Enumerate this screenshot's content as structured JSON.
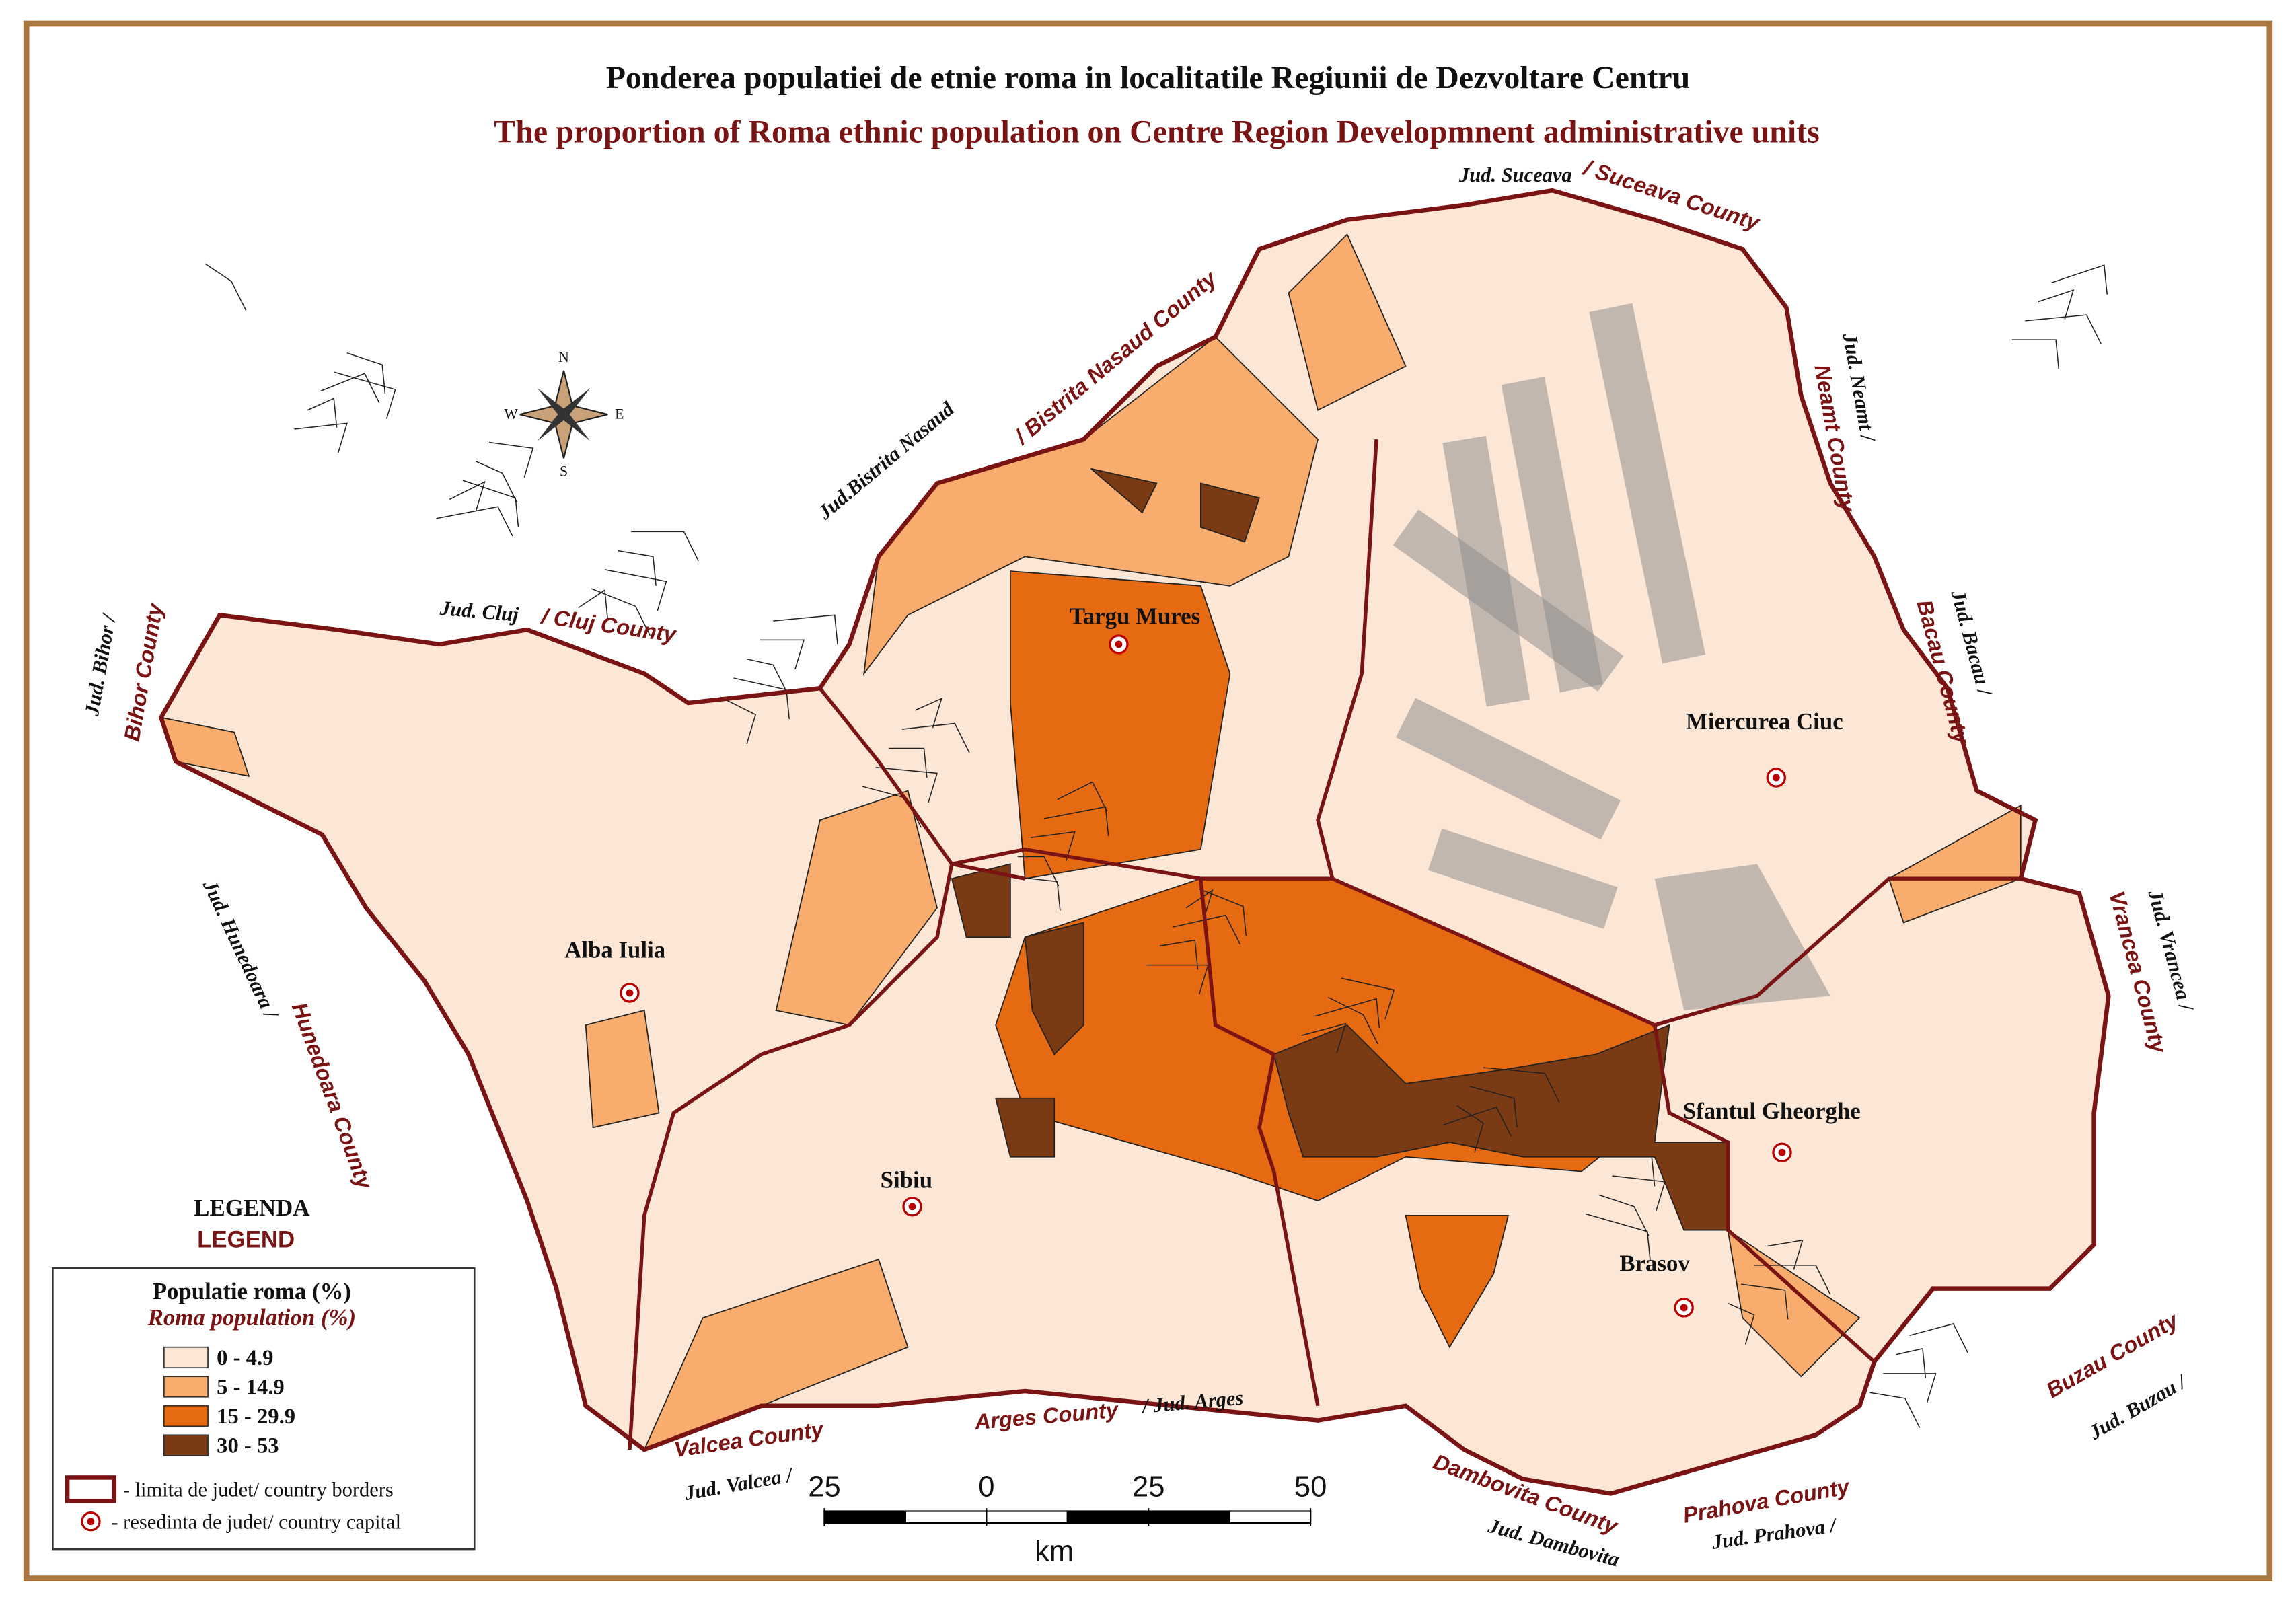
{
  "title": "Ponderea populatiei de etnie roma in localitatile Regiunii de Dezvoltare Centru",
  "subtitle": "The proportion of Roma ethnic population on Centre Region Developmnent administrative units",
  "compass": [
    "N",
    "E",
    "S",
    "W"
  ],
  "neighbors": [
    {
      "local": "Jud. Suceava",
      "english": "/ Suceava County"
    },
    {
      "local": "Jud. Neamt /",
      "english": "Neamt County"
    },
    {
      "local": "Jud. Bacau /",
      "english": "Bacau County"
    },
    {
      "local": "Jud. Vrancea /",
      "english": "Vrancea County"
    },
    {
      "local": "Jud. Buzau /",
      "english": "Buzau County"
    },
    {
      "local": "Jud. Prahova /",
      "english": "Prahova County"
    },
    {
      "local": "Jud. Dambovita",
      "english": "Dambovita County"
    },
    {
      "local": "/ Jud. Arges",
      "english": "Arges County"
    },
    {
      "local": "Jud. Valcea /",
      "english": "Valcea County"
    },
    {
      "local": "Jud. Hunedoara /",
      "english": "Hunedoara County"
    },
    {
      "local": "Jud. Bihor /",
      "english": "Bihor County"
    },
    {
      "local": "Jud. Cluj",
      "english": "/ Cluj County"
    },
    {
      "local": "Jud.Bistrita Nasaud",
      "english": "/ Bistrita Nasaud County"
    }
  ],
  "cities": [
    "Targu Mures",
    "Miercurea Ciuc",
    "Alba Iulia",
    "Sibiu",
    "Sfantul Gheorghe",
    "Brasov"
  ],
  "legend": {
    "title": "LEGENDA",
    "title_en": "LEGEND",
    "heading": "Populatie roma (%)",
    "heading_en": "Roma population (%)",
    "classes": [
      {
        "label": "0 - 4.9",
        "color": "#fce6d6"
      },
      {
        "label": "5 - 14.9",
        "color": "#f8ad6e"
      },
      {
        "label": "15 - 29.9",
        "color": "#e66a12"
      },
      {
        "label": "30 - 53",
        "color": "#7a3a13"
      }
    ],
    "borders": "- limita de judet/ country borders",
    "capital": "- resedinta de judet/ country capital"
  },
  "scale_bar": {
    "ticks": [
      {
        "value": -25,
        "label": "25"
      },
      0,
      25,
      50
    ],
    "unit": "km"
  }
}
